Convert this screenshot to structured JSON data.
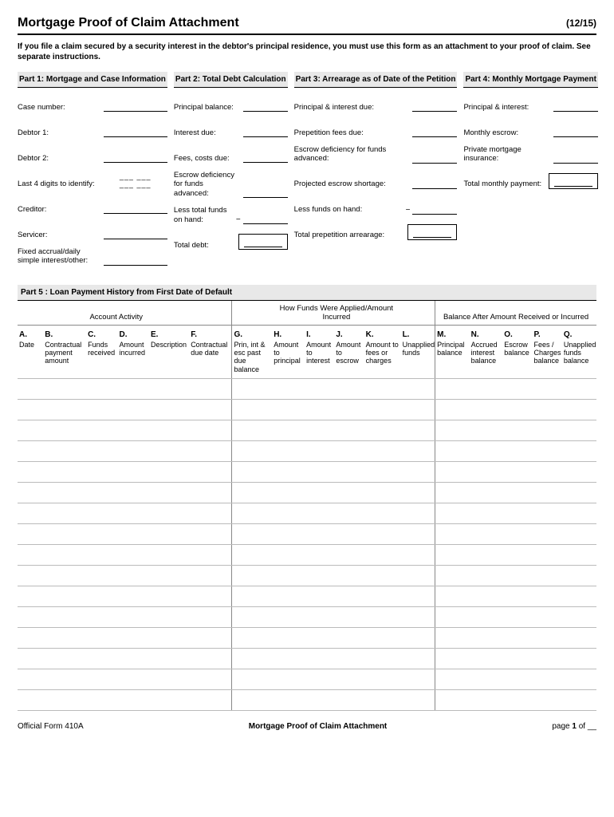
{
  "header": {
    "title": "Mortgage Proof of Claim Attachment",
    "date": "(12/15)"
  },
  "instructions": "If you file a claim secured by a security interest in the debtor's principal residence, you must use this form as an attachment to your proof of claim. See separate instructions.",
  "part1": {
    "title": "Part 1: Mortgage and Case Information",
    "fields": {
      "case_number": "Case number:",
      "debtor1": "Debtor 1:",
      "debtor2": "Debtor 2:",
      "last4": "Last 4 digits to identify:",
      "last4_dashes": "___ ___ ___ ___",
      "creditor": "Creditor:",
      "servicer": "Servicer:",
      "fixed_accrual": "Fixed accrual/daily simple interest/other:"
    }
  },
  "part2": {
    "title": "Part 2: Total Debt Calculation",
    "fields": {
      "principal_balance": "Principal balance:",
      "interest_due": "Interest due:",
      "fees_costs": "Fees, costs due:",
      "escrow_def": "Escrow deficiency for funds advanced:",
      "less_funds": "Less total funds on hand:",
      "total_debt": "Total debt:"
    }
  },
  "part3": {
    "title": "Part 3: Arrearage as of Date of the Petition",
    "fields": {
      "pi_due": "Principal & interest due:",
      "prepetition_fees": "Prepetition fees due:",
      "escrow_def_adv": "Escrow deficiency for funds advanced:",
      "projected_shortage": "Projected escrow shortage:",
      "less_funds_hand": "Less funds on hand:",
      "total_prepetition": "Total prepetition arrearage:"
    }
  },
  "part4": {
    "title": "Part 4: Monthly Mortgage Payment",
    "fields": {
      "pi": "Principal & interest:",
      "monthly_escrow": "Monthly escrow:",
      "pmi": "Private mortgage insurance:",
      "total_monthly": "Total monthly payment:"
    }
  },
  "part5": {
    "title": "Part 5 : Loan Payment History from First Date of Default",
    "groups": {
      "activity": "Account Activity",
      "applied": "How Funds Were Applied/Amount Incurred",
      "balance": "Balance After Amount Received or Incurred"
    },
    "columns": [
      {
        "letter": "A.",
        "label": "Date"
      },
      {
        "letter": "B.",
        "label": "Contractual payment amount"
      },
      {
        "letter": "C.",
        "label": "Funds received"
      },
      {
        "letter": "D.",
        "label": "Amount incurred"
      },
      {
        "letter": "E.",
        "label": "Description"
      },
      {
        "letter": "F.",
        "label": "Contractual due date"
      },
      {
        "letter": "G.",
        "label": "Prin, int & esc past due balance"
      },
      {
        "letter": "H.",
        "label": "Amount to principal"
      },
      {
        "letter": "I.",
        "label": "Amount to interest"
      },
      {
        "letter": "J.",
        "label": "Amount to escrow"
      },
      {
        "letter": "K.",
        "label": "Amount to fees or charges"
      },
      {
        "letter": "L.",
        "label": "Unapplied funds"
      },
      {
        "letter": "M.",
        "label": "Principal balance"
      },
      {
        "letter": "N.",
        "label": "Accrued interest balance"
      },
      {
        "letter": "O.",
        "label": "Escrow balance"
      },
      {
        "letter": "P.",
        "label": "Fees / Charges balance"
      },
      {
        "letter": "Q.",
        "label": "Unapplied funds balance"
      }
    ],
    "row_count": 16,
    "col_widths_pct": [
      4.5,
      7.5,
      5.5,
      5.5,
      7,
      7.5,
      7,
      5.7,
      5.2,
      5.2,
      6.4,
      6,
      6,
      5.8,
      5.2,
      5.2,
      6
    ]
  },
  "footer": {
    "left": "Official Form 410A",
    "center": "Mortgage Proof of Claim Attachment",
    "right_prefix": "page ",
    "right_page": "1",
    "right_suffix": " of __"
  },
  "minus": "−"
}
